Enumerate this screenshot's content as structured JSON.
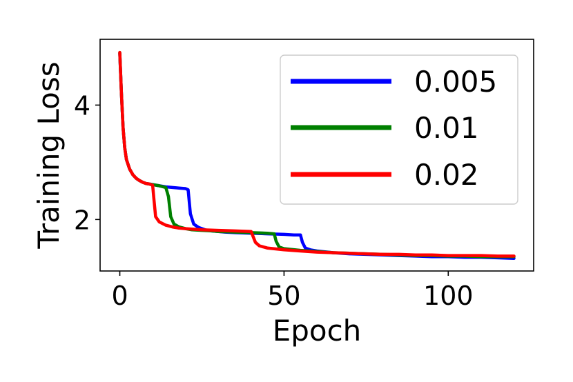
{
  "chart_data": {
    "type": "line",
    "xlabel": "Epoch",
    "ylabel": "Training Loss",
    "xlim": [
      -6,
      126
    ],
    "ylim": [
      1.1,
      5.15
    ],
    "xticks": [
      0,
      50,
      100
    ],
    "yticks": [
      2,
      4
    ],
    "grid": false,
    "legend_position": "top-right",
    "series": [
      {
        "name": "0.005",
        "color": "#0000ff",
        "points": [
          [
            0,
            4.9
          ],
          [
            0.5,
            4.2
          ],
          [
            1,
            3.6
          ],
          [
            1.5,
            3.25
          ],
          [
            2,
            3.05
          ],
          [
            3,
            2.88
          ],
          [
            4,
            2.78
          ],
          [
            5,
            2.72
          ],
          [
            6,
            2.68
          ],
          [
            7,
            2.65
          ],
          [
            8,
            2.63
          ],
          [
            9,
            2.62
          ],
          [
            10,
            2.61
          ],
          [
            12,
            2.59
          ],
          [
            14,
            2.57
          ],
          [
            16,
            2.56
          ],
          [
            18,
            2.55
          ],
          [
            20,
            2.54
          ],
          [
            20.8,
            2.52
          ],
          [
            21.5,
            2.1
          ],
          [
            22.5,
            1.92
          ],
          [
            24,
            1.86
          ],
          [
            26,
            1.82
          ],
          [
            28,
            1.8
          ],
          [
            30,
            1.79
          ],
          [
            32,
            1.78
          ],
          [
            35,
            1.77
          ],
          [
            40,
            1.76
          ],
          [
            45,
            1.75
          ],
          [
            50,
            1.74
          ],
          [
            53,
            1.73
          ],
          [
            55,
            1.73
          ],
          [
            55.6,
            1.6
          ],
          [
            56.5,
            1.5
          ],
          [
            58,
            1.47
          ],
          [
            60,
            1.45
          ],
          [
            65,
            1.42
          ],
          [
            70,
            1.4
          ],
          [
            75,
            1.39
          ],
          [
            80,
            1.38
          ],
          [
            85,
            1.37
          ],
          [
            90,
            1.36
          ],
          [
            95,
            1.35
          ],
          [
            100,
            1.35
          ],
          [
            105,
            1.34
          ],
          [
            110,
            1.34
          ],
          [
            115,
            1.33
          ],
          [
            120,
            1.32
          ]
        ]
      },
      {
        "name": "0.01",
        "color": "#008000",
        "points": [
          [
            0,
            4.92
          ],
          [
            0.5,
            4.2
          ],
          [
            1,
            3.6
          ],
          [
            1.5,
            3.25
          ],
          [
            2,
            3.05
          ],
          [
            3,
            2.88
          ],
          [
            4,
            2.78
          ],
          [
            5,
            2.72
          ],
          [
            6,
            2.68
          ],
          [
            7,
            2.65
          ],
          [
            8,
            2.63
          ],
          [
            9,
            2.62
          ],
          [
            10,
            2.61
          ],
          [
            12,
            2.59
          ],
          [
            14,
            2.56
          ],
          [
            14.8,
            2.4
          ],
          [
            15.5,
            2.05
          ],
          [
            16.5,
            1.92
          ],
          [
            18,
            1.87
          ],
          [
            20,
            1.84
          ],
          [
            22,
            1.82
          ],
          [
            25,
            1.81
          ],
          [
            28,
            1.8
          ],
          [
            30,
            1.79
          ],
          [
            35,
            1.78
          ],
          [
            40,
            1.77
          ],
          [
            45,
            1.76
          ],
          [
            47,
            1.75
          ],
          [
            47.6,
            1.62
          ],
          [
            48.5,
            1.52
          ],
          [
            50,
            1.49
          ],
          [
            55,
            1.46
          ],
          [
            60,
            1.44
          ],
          [
            65,
            1.42
          ],
          [
            70,
            1.41
          ],
          [
            75,
            1.4
          ],
          [
            80,
            1.39
          ],
          [
            85,
            1.38
          ],
          [
            90,
            1.37
          ],
          [
            95,
            1.37
          ],
          [
            100,
            1.36
          ],
          [
            105,
            1.36
          ],
          [
            110,
            1.35
          ],
          [
            115,
            1.35
          ],
          [
            120,
            1.35
          ]
        ]
      },
      {
        "name": "0.02",
        "color": "#ff0000",
        "points": [
          [
            0,
            4.92
          ],
          [
            0.5,
            4.2
          ],
          [
            1,
            3.6
          ],
          [
            1.5,
            3.25
          ],
          [
            2,
            3.05
          ],
          [
            3,
            2.88
          ],
          [
            4,
            2.78
          ],
          [
            5,
            2.72
          ],
          [
            6,
            2.68
          ],
          [
            7,
            2.65
          ],
          [
            8,
            2.63
          ],
          [
            9,
            2.62
          ],
          [
            10,
            2.6
          ],
          [
            10.4,
            2.35
          ],
          [
            10.9,
            2.05
          ],
          [
            12,
            1.96
          ],
          [
            14,
            1.9
          ],
          [
            16,
            1.87
          ],
          [
            18,
            1.85
          ],
          [
            20,
            1.84
          ],
          [
            25,
            1.82
          ],
          [
            30,
            1.81
          ],
          [
            35,
            1.8
          ],
          [
            40,
            1.79
          ],
          [
            40.6,
            1.7
          ],
          [
            41.3,
            1.6
          ],
          [
            42.5,
            1.54
          ],
          [
            45,
            1.5
          ],
          [
            50,
            1.47
          ],
          [
            55,
            1.45
          ],
          [
            60,
            1.43
          ],
          [
            65,
            1.42
          ],
          [
            70,
            1.41
          ],
          [
            75,
            1.4
          ],
          [
            80,
            1.39
          ],
          [
            85,
            1.39
          ],
          [
            90,
            1.38
          ],
          [
            95,
            1.38
          ],
          [
            100,
            1.37
          ],
          [
            105,
            1.37
          ],
          [
            110,
            1.37
          ],
          [
            115,
            1.36
          ],
          [
            120,
            1.36
          ]
        ]
      }
    ]
  }
}
